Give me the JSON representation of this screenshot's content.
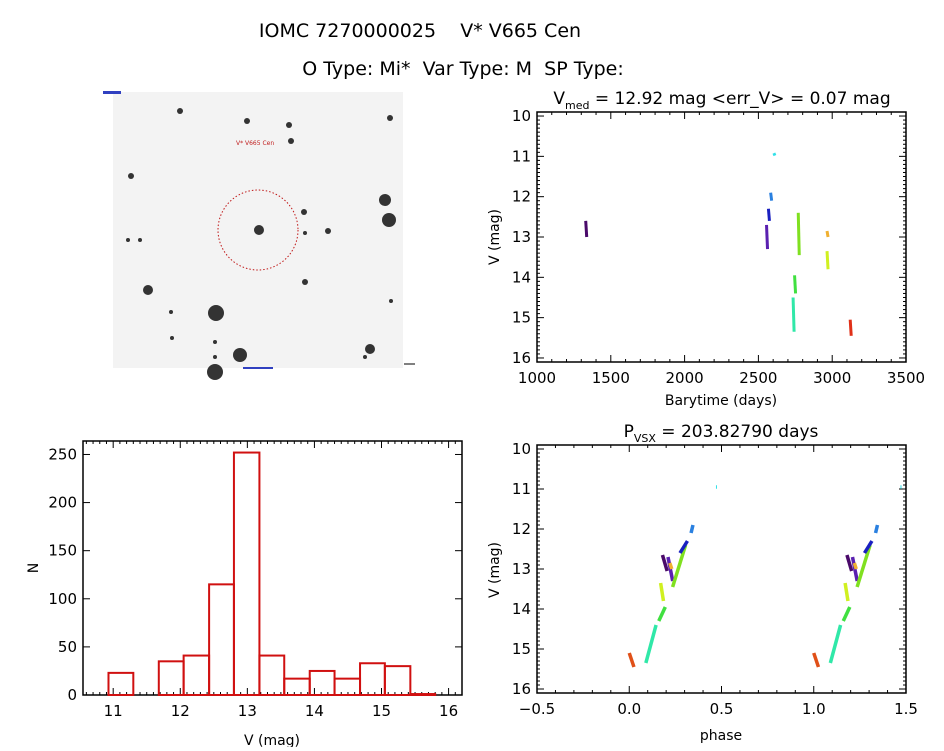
{
  "header": {
    "title": "IOMC 7270000025    V* V665 Cen",
    "subtitle": "O Type: Mi*  Var Type: M  SP Type:"
  },
  "finder_chart": {
    "labels": [
      "V* V665 Cen"
    ]
  },
  "chart_data": [
    {
      "type": "scatter",
      "title_main": "V",
      "title_sub": "med",
      "title_rest": " = 12.92 mag <err_V> = 0.07 mag",
      "xlabel": "Barytime (days)",
      "ylabel": "V (mag)",
      "xlim": [
        1000,
        3500
      ],
      "ylim": [
        16.1,
        9.9
      ],
      "y_inverted": true,
      "xticks": [
        "1000",
        "1500",
        "2000",
        "2500",
        "3000",
        "3500"
      ],
      "yticks": [
        "10",
        "11",
        "12",
        "13",
        "14",
        "15",
        "16"
      ],
      "segments": [
        {
          "t": 1330,
          "v": [
            12.6,
            13.0
          ],
          "color": "#4a0a6a"
        },
        {
          "t": 2555,
          "v": [
            12.7,
            13.3
          ],
          "color": "#5a20b0"
        },
        {
          "t": 2568,
          "v": [
            12.3,
            12.6
          ],
          "color": "#1a20c0"
        },
        {
          "t": 2583,
          "v": [
            11.9,
            12.1
          ],
          "color": "#2a80e0"
        },
        {
          "t": 2605,
          "v": [
            10.92,
            10.98
          ],
          "color": "#30e0e8"
        },
        {
          "t": 2735,
          "v": [
            14.5,
            15.35
          ],
          "color": "#30e8a8"
        },
        {
          "t": 2745,
          "v": [
            13.95,
            14.4
          ],
          "color": "#40e040"
        },
        {
          "t": 2770,
          "v": [
            12.4,
            13.45
          ],
          "color": "#80e020"
        },
        {
          "t": 2965,
          "v": [
            12.85,
            13.0
          ],
          "color": "#f0b030"
        },
        {
          "t": 2965,
          "v": [
            13.35,
            13.8
          ],
          "color": "#d0f020"
        },
        {
          "t": 3122,
          "v": [
            15.05,
            15.45
          ],
          "color": "#e03018"
        }
      ]
    },
    {
      "type": "bar",
      "xlabel": "V (mag)",
      "ylabel": "N",
      "xlim": [
        10.55,
        16.2
      ],
      "ylim": [
        0,
        264
      ],
      "xticks": [
        "11",
        "12",
        "13",
        "14",
        "15",
        "16"
      ],
      "yticks": [
        "0",
        "50",
        "100",
        "150",
        "200",
        "250"
      ],
      "bin_edges": [
        10.93,
        11.3,
        11.68,
        12.05,
        12.43,
        12.8,
        13.18,
        13.55,
        13.93,
        14.3,
        14.68,
        15.05,
        15.43,
        15.8
      ],
      "values": [
        23,
        0,
        35,
        41,
        115,
        252,
        41,
        17,
        25,
        17,
        33,
        30,
        1
      ],
      "color": "#d01010"
    },
    {
      "type": "scatter",
      "title_main": "P",
      "title_sub": "VSX",
      "title_rest": " = 203.82790 days",
      "xlabel": "phase",
      "ylabel": "V (mag)",
      "xlim": [
        -0.5,
        1.5
      ],
      "ylim": [
        16.1,
        9.9
      ],
      "y_inverted": true,
      "xticks": [
        "−0.5",
        "0.0",
        "0.5",
        "1.0",
        "1.5"
      ],
      "yticks": [
        "10",
        "11",
        "12",
        "13",
        "14",
        "15",
        "16"
      ],
      "repeat_offset": 1.0,
      "segments": [
        {
          "phase": [
            0.0,
            0.02
          ],
          "v": [
            15.1,
            15.45
          ],
          "color": "#e05018"
        },
        {
          "phase": [
            0.09,
            0.14
          ],
          "v": [
            15.35,
            14.4
          ],
          "color": "#30e8a8"
        },
        {
          "phase": [
            0.16,
            0.19
          ],
          "v": [
            14.3,
            13.95
          ],
          "color": "#40e040"
        },
        {
          "phase": [
            0.17,
            0.18
          ],
          "v": [
            13.35,
            13.8
          ],
          "color": "#d0f020"
        },
        {
          "phase": [
            0.18,
            0.2
          ],
          "v": [
            12.65,
            13.05
          ],
          "color": "#4a0a6a"
        },
        {
          "phase": [
            0.21,
            0.23
          ],
          "v": [
            12.7,
            13.3
          ],
          "color": "#5a20b0"
        },
        {
          "phase": [
            0.22,
            0.225
          ],
          "v": [
            12.85,
            13.0
          ],
          "color": "#f0b030"
        },
        {
          "phase": [
            0.235,
            0.3
          ],
          "v": [
            13.45,
            12.4
          ],
          "color": "#80e020"
        },
        {
          "phase": [
            0.275,
            0.31
          ],
          "v": [
            12.6,
            12.3
          ],
          "color": "#1a20c0"
        },
        {
          "phase": [
            0.335,
            0.34
          ],
          "v": [
            12.1,
            11.9
          ],
          "color": "#2a80e0"
        },
        {
          "phase": [
            0.47,
            0.47
          ],
          "v": [
            10.95,
            10.95
          ],
          "color": "#30e0e8"
        }
      ]
    }
  ]
}
